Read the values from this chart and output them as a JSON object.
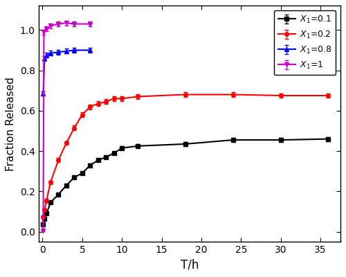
{
  "title": "",
  "xlabel": "T/h",
  "ylabel": "Fraction Released",
  "xlim": [
    -0.5,
    37.5
  ],
  "ylim": [
    -0.05,
    1.12
  ],
  "xticks": [
    0,
    5,
    10,
    15,
    20,
    25,
    30,
    35
  ],
  "yticks": [
    0.0,
    0.2,
    0.4,
    0.6,
    0.8,
    1.0
  ],
  "series": [
    {
      "label": "$X_1$=0.1",
      "color": "#000000",
      "marker": "s",
      "marker_size": 4,
      "x": [
        0.083,
        0.25,
        0.5,
        1,
        2,
        3,
        4,
        5,
        6,
        7,
        8,
        9,
        10,
        12,
        18,
        24,
        30,
        36
      ],
      "y": [
        0.037,
        0.065,
        0.09,
        0.145,
        0.185,
        0.23,
        0.27,
        0.29,
        0.33,
        0.355,
        0.37,
        0.39,
        0.415,
        0.425,
        0.435,
        0.455,
        0.455,
        0.46
      ],
      "yerr": [
        0.005,
        0.005,
        0.005,
        0.006,
        0.006,
        0.007,
        0.007,
        0.007,
        0.007,
        0.007,
        0.008,
        0.008,
        0.008,
        0.009,
        0.009,
        0.01,
        0.01,
        0.01
      ]
    },
    {
      "label": "$X_1$=0.2",
      "color": "#ff0000",
      "marker": "o",
      "marker_size": 4,
      "x": [
        0.083,
        0.25,
        0.5,
        1,
        2,
        3,
        4,
        5,
        6,
        7,
        8,
        9,
        10,
        12,
        18,
        24,
        30,
        36
      ],
      "y": [
        0.075,
        0.11,
        0.155,
        0.245,
        0.355,
        0.44,
        0.515,
        0.58,
        0.62,
        0.635,
        0.645,
        0.66,
        0.66,
        0.67,
        0.68,
        0.68,
        0.675,
        0.675
      ],
      "yerr": [
        0.006,
        0.007,
        0.008,
        0.009,
        0.01,
        0.01,
        0.011,
        0.011,
        0.012,
        0.012,
        0.012,
        0.012,
        0.012,
        0.012,
        0.012,
        0.013,
        0.012,
        0.012
      ]
    },
    {
      "label": "$X_1$=0.8",
      "color": "#0000ff",
      "marker": "^",
      "marker_size": 4,
      "x": [
        0.083,
        0.25,
        0.5,
        1,
        2,
        3,
        4,
        6
      ],
      "y": [
        0.685,
        0.86,
        0.875,
        0.885,
        0.89,
        0.895,
        0.9,
        0.9
      ],
      "yerr": [
        0.01,
        0.012,
        0.012,
        0.012,
        0.012,
        0.012,
        0.012,
        0.012
      ]
    },
    {
      "label": "$X_1$=1",
      "color": "#cc00cc",
      "marker": "v",
      "marker_size": 4,
      "x": [
        0.083,
        0.17,
        0.5,
        1,
        2,
        3,
        4,
        6
      ],
      "y": [
        0.005,
        0.99,
        1.005,
        1.02,
        1.03,
        1.035,
        1.03,
        1.03
      ],
      "yerr": [
        0.003,
        0.012,
        0.012,
        0.012,
        0.012,
        0.012,
        0.012,
        0.012
      ]
    }
  ],
  "figsize": [
    5.0,
    4.0
  ],
  "dpi": 100,
  "bg_color": "#ffffff",
  "xlabel_fontsize": 12,
  "ylabel_fontsize": 11,
  "tick_labelsize": 10,
  "legend_fontsize": 9,
  "linewidth": 1.5
}
